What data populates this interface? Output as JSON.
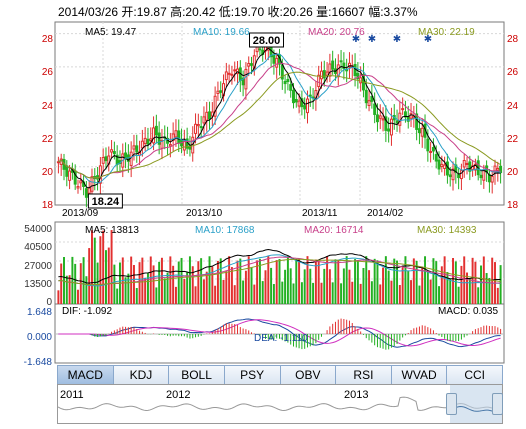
{
  "header": {
    "text": "2014/03/26 开:19.87 高:20.42 低:19.70 收:20.26 量:16607 幅:3.37%"
  },
  "price_panel": {
    "ma_labels": [
      {
        "text": "MA5: 19.47",
        "color": "#000000"
      },
      {
        "text": "MA10: 19.66",
        "color": "#2aa0c8"
      },
      {
        "text": "MA20: 20.76",
        "color": "#c8408a"
      },
      {
        "text": "MA30: 22.19",
        "color": "#8a9a20"
      }
    ],
    "y_ticks": [
      "28",
      "26",
      "24",
      "22",
      "20",
      "18"
    ],
    "x_labels": [
      "2013/09",
      "2013/10",
      "2013/11",
      "2014/02"
    ],
    "high_callout": "28.00",
    "low_callout": "18.24"
  },
  "volume_panel": {
    "ma_labels": [
      {
        "text": "MA5: 13813",
        "color": "#000000"
      },
      {
        "text": "MA10: 17868",
        "color": "#2aa0c8"
      },
      {
        "text": "MA20: 16714",
        "color": "#c8408a"
      },
      {
        "text": "MA30: 14393",
        "color": "#8a9a20"
      }
    ],
    "y_ticks": [
      "54000",
      "40500",
      "27000",
      "13500",
      "0"
    ]
  },
  "macd_panel": {
    "dif_label": "DIF: -1.092",
    "dea_label": "DEA: -1.110",
    "macd_label": "MACD: 0.035",
    "y_ticks": [
      "1.648",
      "0.000",
      "-1.648"
    ]
  },
  "tabs": [
    "MACD",
    "KDJ",
    "BOLL",
    "PSY",
    "OBV",
    "RSI",
    "WVAD",
    "CCI"
  ],
  "navigator": {
    "years": [
      "2011",
      "2012",
      "2013"
    ]
  }
}
